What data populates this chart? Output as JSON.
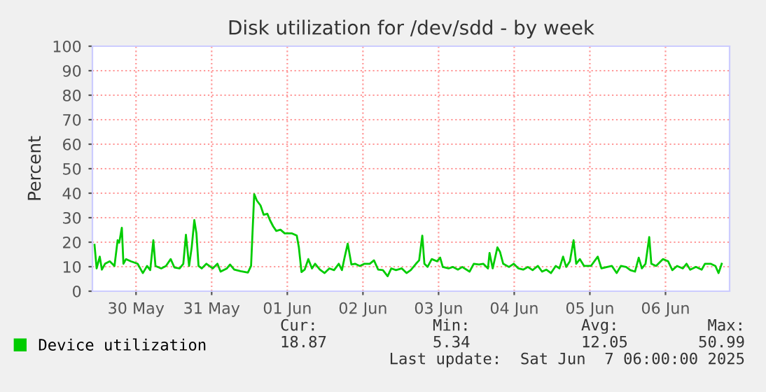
{
  "chart_data": {
    "type": "line",
    "title": "Disk utilization for /dev/sdd - by week",
    "ylabel": "Percent",
    "xlim": [
      "2025-05-29T22:10",
      "2025-06-07T08:20"
    ],
    "xticks": [
      {
        "value": "2025-05-30T12:00",
        "label": "30 May"
      },
      {
        "value": "2025-05-31T12:00",
        "label": "31 May"
      },
      {
        "value": "2025-06-01T12:00",
        "label": "01 Jun"
      },
      {
        "value": "2025-06-02T12:00",
        "label": "02 Jun"
      },
      {
        "value": "2025-06-03T12:00",
        "label": "03 Jun"
      },
      {
        "value": "2025-06-04T12:00",
        "label": "04 Jun"
      },
      {
        "value": "2025-06-05T12:00",
        "label": "05 Jun"
      },
      {
        "value": "2025-06-06T12:00",
        "label": "06 Jun"
      }
    ],
    "ylim": [
      0,
      100
    ],
    "yticks": [
      0,
      10,
      20,
      30,
      40,
      50,
      60,
      70,
      80,
      90,
      100
    ],
    "grid": true,
    "legend": "bottom left",
    "marker": "none",
    "line_style": "solid",
    "annotations": [
      "Cur:",
      "Min:",
      "Avg:",
      "Max:",
      "18.87",
      "5.34",
      "12.05",
      "50.99",
      "Last update:  Sat Jun  7 06:00:00 2025"
    ],
    "series": [
      {
        "name": "Device utilization",
        "color": "#00cc00",
        "x": [
          "2025-05-29T22:50",
          "2025-05-29T23:30",
          "2025-05-30T00:30",
          "2025-05-30T01:10",
          "2025-05-30T02:10",
          "2025-05-30T03:40",
          "2025-05-30T05:10",
          "2025-05-30T06:10",
          "2025-05-30T06:40",
          "2025-05-30T07:30",
          "2025-05-30T08:00",
          "2025-05-30T08:50",
          "2025-05-30T10:20",
          "2025-05-30T12:30",
          "2025-05-30T14:10",
          "2025-05-30T15:30",
          "2025-05-30T16:30",
          "2025-05-30T17:30",
          "2025-05-30T18:10",
          "2025-05-30T20:00",
          "2025-05-30T21:30",
          "2025-05-30T23:00",
          "2025-05-31T00:10",
          "2025-05-31T01:50",
          "2025-05-31T03:00",
          "2025-05-31T03:50",
          "2025-05-31T04:50",
          "2025-05-31T05:40",
          "2025-05-31T06:30",
          "2025-05-31T07:10",
          "2025-05-31T07:50",
          "2025-05-31T08:50",
          "2025-05-31T10:20",
          "2025-05-31T12:20",
          "2025-05-31T13:50",
          "2025-05-31T14:50",
          "2025-05-31T16:50",
          "2025-05-31T17:50",
          "2025-05-31T19:10",
          "2025-05-31T21:10",
          "2025-05-31T23:30",
          "2025-06-01T00:30",
          "2025-06-01T01:30",
          "2025-06-01T02:20",
          "2025-06-01T03:30",
          "2025-06-01T04:30",
          "2025-06-01T05:40",
          "2025-06-01T06:30",
          "2025-06-01T07:30",
          "2025-06-01T08:30",
          "2025-06-01T09:50",
          "2025-06-01T11:10",
          "2025-06-01T13:30",
          "2025-06-01T15:00",
          "2025-06-01T15:40",
          "2025-06-01T16:30",
          "2025-06-01T17:30",
          "2025-06-01T18:40",
          "2025-06-01T19:50",
          "2025-06-01T20:50",
          "2025-06-01T22:20",
          "2025-06-01T23:50",
          "2025-06-02T01:20",
          "2025-06-02T02:50",
          "2025-06-02T04:20",
          "2025-06-02T05:20",
          "2025-06-02T06:10",
          "2025-06-02T07:10",
          "2025-06-02T08:20",
          "2025-06-02T09:30",
          "2025-06-02T11:00",
          "2025-06-02T12:30",
          "2025-06-02T14:10",
          "2025-06-02T15:30",
          "2025-06-02T16:50",
          "2025-06-02T18:20",
          "2025-06-02T19:50",
          "2025-06-02T21:00",
          "2025-06-02T22:30",
          "2025-06-03T00:20",
          "2025-06-03T01:50",
          "2025-06-03T03:10",
          "2025-06-03T04:50",
          "2025-06-03T05:50",
          "2025-06-03T06:50",
          "2025-06-03T07:30",
          "2025-06-03T08:30",
          "2025-06-03T09:50",
          "2025-06-03T11:30",
          "2025-06-03T12:30",
          "2025-06-03T13:20",
          "2025-06-03T15:10",
          "2025-06-03T16:30",
          "2025-06-03T18:10",
          "2025-06-03T19:30",
          "2025-06-03T21:50",
          "2025-06-03T23:10",
          "2025-06-04T00:50",
          "2025-06-04T02:10",
          "2025-06-04T03:40",
          "2025-06-04T04:10",
          "2025-06-04T05:10",
          "2025-06-04T06:40",
          "2025-06-04T07:30",
          "2025-06-04T08:30",
          "2025-06-04T10:20",
          "2025-06-04T11:50",
          "2025-06-04T13:20",
          "2025-06-04T14:50",
          "2025-06-04T16:20",
          "2025-06-04T17:50",
          "2025-06-04T19:30",
          "2025-06-04T20:50",
          "2025-06-04T22:10",
          "2025-06-04T23:40",
          "2025-06-05T01:10",
          "2025-06-05T02:20",
          "2025-06-05T03:30",
          "2025-06-05T04:30",
          "2025-06-05T05:40",
          "2025-06-05T06:50",
          "2025-06-05T07:40",
          "2025-06-05T08:50",
          "2025-06-05T10:10",
          "2025-06-05T12:20",
          "2025-06-05T14:30",
          "2025-06-05T15:40",
          "2025-06-05T17:30",
          "2025-06-05T19:00",
          "2025-06-05T20:30",
          "2025-06-05T21:50",
          "2025-06-05T23:30",
          "2025-06-06T00:50",
          "2025-06-06T02:20",
          "2025-06-06T03:30",
          "2025-06-06T04:30",
          "2025-06-06T05:40",
          "2025-06-06T06:50",
          "2025-06-06T07:30",
          "2025-06-06T09:00",
          "2025-06-06T11:10",
          "2025-06-06T12:50",
          "2025-06-06T14:10",
          "2025-06-06T15:40",
          "2025-06-06T17:30",
          "2025-06-06T18:40",
          "2025-06-06T19:50",
          "2025-06-06T21:40",
          "2025-06-06T23:30",
          "2025-06-07T00:30",
          "2025-06-07T02:20",
          "2025-06-07T03:50",
          "2025-06-07T04:50",
          "2025-06-07T05:50"
        ],
        "values": [
          18.9,
          9.3,
          14.1,
          8.8,
          11.2,
          12.2,
          10.3,
          20.8,
          19.8,
          25.9,
          11.2,
          13.1,
          12.2,
          11.2,
          7.4,
          10.3,
          8.6,
          20.8,
          10.3,
          9.3,
          10.3,
          13.1,
          9.7,
          9.3,
          11.2,
          23.0,
          10.3,
          17.9,
          29.0,
          23.6,
          10.3,
          9.3,
          11.2,
          9.3,
          11.2,
          8.0,
          9.3,
          10.9,
          8.8,
          8.2,
          7.6,
          10.3,
          39.6,
          37.0,
          35.0,
          31.2,
          31.6,
          29.0,
          26.5,
          24.6,
          25.1,
          23.6,
          23.6,
          22.7,
          17.9,
          7.8,
          8.8,
          13.1,
          9.3,
          11.2,
          8.8,
          7.4,
          9.3,
          8.6,
          11.2,
          8.6,
          13.7,
          19.4,
          10.9,
          11.2,
          10.3,
          11.2,
          11.2,
          12.6,
          8.8,
          8.6,
          6.1,
          9.3,
          8.6,
          9.3,
          7.4,
          8.6,
          11.2,
          12.6,
          22.7,
          11.2,
          9.9,
          13.1,
          12.2,
          13.7,
          9.9,
          9.3,
          9.9,
          8.8,
          9.9,
          8.0,
          11.2,
          10.9,
          11.2,
          9.3,
          15.6,
          9.3,
          17.9,
          16.0,
          11.2,
          9.9,
          11.2,
          9.3,
          8.8,
          9.9,
          8.6,
          10.3,
          8.0,
          8.8,
          7.4,
          10.3,
          9.3,
          14.1,
          9.9,
          12.2,
          20.8,
          11.2,
          13.1,
          10.3,
          10.3,
          14.1,
          9.3,
          9.9,
          10.3,
          7.4,
          10.3,
          9.9,
          8.6,
          8.0,
          13.7,
          9.3,
          11.2,
          22.1,
          11.2,
          10.3,
          13.1,
          12.2,
          8.6,
          10.3,
          9.3,
          11.2,
          8.8,
          9.9,
          8.8,
          11.2,
          11.2,
          10.3,
          7.4,
          11.2
        ]
      }
    ]
  }
}
